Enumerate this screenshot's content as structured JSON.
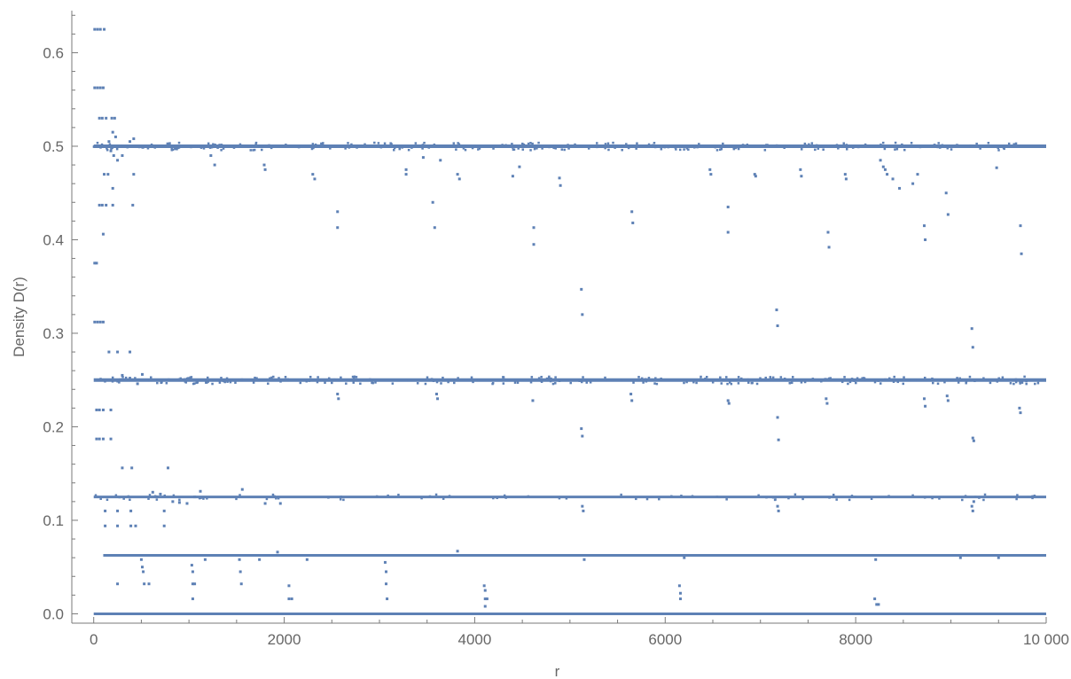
{
  "chart_data": {
    "type": "scatter",
    "title": "",
    "xlabel": "r",
    "ylabel": "Density D(r)",
    "xlim": [
      -230,
      10000
    ],
    "ylim": [
      -0.01,
      0.645
    ],
    "x_ticks": [
      {
        "value": 0,
        "label": "0"
      },
      {
        "value": 2000,
        "label": "2000"
      },
      {
        "value": 4000,
        "label": "4000"
      },
      {
        "value": 6000,
        "label": "6000"
      },
      {
        "value": 8000,
        "label": "8000"
      },
      {
        "value": 10000,
        "label": "10 000"
      }
    ],
    "y_ticks": [
      {
        "value": 0.0,
        "label": "0.0"
      },
      {
        "value": 0.1,
        "label": "0.1"
      },
      {
        "value": 0.2,
        "label": "0.2"
      },
      {
        "value": 0.3,
        "label": "0.3"
      },
      {
        "value": 0.4,
        "label": "0.4"
      },
      {
        "value": 0.5,
        "label": "0.5"
      },
      {
        "value": 0.6,
        "label": "0.6"
      }
    ],
    "grid": false,
    "legend": "none",
    "point_color": "#5e81b5",
    "bands": [
      {
        "y": 0.5,
        "x_from": 0,
        "x_to": 10000
      },
      {
        "y": 0.25,
        "x_from": 0,
        "x_to": 10000
      },
      {
        "y": 0.125,
        "x_from": 0,
        "x_to": 10000
      },
      {
        "y": 0.0625,
        "x_from": 100,
        "x_to": 10000
      },
      {
        "y": 0.0,
        "x_from": 0,
        "x_to": 10000
      }
    ],
    "points": [
      [
        10,
        0.625
      ],
      [
        40,
        0.625
      ],
      [
        70,
        0.625
      ],
      [
        110,
        0.625
      ],
      [
        10,
        0.5625
      ],
      [
        40,
        0.5625
      ],
      [
        70,
        0.5625
      ],
      [
        100,
        0.5625
      ],
      [
        60,
        0.53
      ],
      [
        90,
        0.53
      ],
      [
        130,
        0.53
      ],
      [
        190,
        0.53
      ],
      [
        220,
        0.53
      ],
      [
        200,
        0.515
      ],
      [
        230,
        0.51
      ],
      [
        160,
        0.505
      ],
      [
        180,
        0.495
      ],
      [
        210,
        0.49
      ],
      [
        250,
        0.485
      ],
      [
        300,
        0.49
      ],
      [
        380,
        0.505
      ],
      [
        420,
        0.508
      ],
      [
        110,
        0.47
      ],
      [
        150,
        0.47
      ],
      [
        420,
        0.47
      ],
      [
        200,
        0.455
      ],
      [
        60,
        0.437
      ],
      [
        90,
        0.437
      ],
      [
        130,
        0.437
      ],
      [
        200,
        0.437
      ],
      [
        410,
        0.437
      ],
      [
        100,
        0.406
      ],
      [
        10,
        0.375
      ],
      [
        30,
        0.375
      ],
      [
        10,
        0.312
      ],
      [
        40,
        0.312
      ],
      [
        70,
        0.312
      ],
      [
        100,
        0.312
      ],
      [
        160,
        0.28
      ],
      [
        250,
        0.28
      ],
      [
        380,
        0.28
      ],
      [
        300,
        0.255
      ],
      [
        380,
        0.252
      ],
      [
        460,
        0.246
      ],
      [
        510,
        0.256
      ],
      [
        560,
        0.25
      ],
      [
        30,
        0.218
      ],
      [
        60,
        0.218
      ],
      [
        100,
        0.218
      ],
      [
        180,
        0.218
      ],
      [
        30,
        0.187
      ],
      [
        60,
        0.187
      ],
      [
        100,
        0.187
      ],
      [
        180,
        0.187
      ],
      [
        300,
        0.156
      ],
      [
        400,
        0.156
      ],
      [
        780,
        0.156
      ],
      [
        620,
        0.13
      ],
      [
        700,
        0.128
      ],
      [
        830,
        0.12
      ],
      [
        900,
        0.119
      ],
      [
        980,
        0.118
      ],
      [
        1060,
        0.125
      ],
      [
        1120,
        0.131
      ],
      [
        1560,
        0.133
      ],
      [
        1800,
        0.118
      ],
      [
        1960,
        0.118
      ],
      [
        120,
        0.11
      ],
      [
        250,
        0.11
      ],
      [
        390,
        0.11
      ],
      [
        740,
        0.11
      ],
      [
        120,
        0.094
      ],
      [
        250,
        0.094
      ],
      [
        390,
        0.094
      ],
      [
        440,
        0.094
      ],
      [
        740,
        0.094
      ],
      [
        500,
        0.058
      ],
      [
        510,
        0.05
      ],
      [
        520,
        0.045
      ],
      [
        530,
        0.032
      ],
      [
        580,
        0.032
      ],
      [
        1030,
        0.052
      ],
      [
        1040,
        0.045
      ],
      [
        1040,
        0.032
      ],
      [
        1060,
        0.032
      ],
      [
        1040,
        0.016
      ],
      [
        1170,
        0.058
      ],
      [
        1530,
        0.058
      ],
      [
        1540,
        0.045
      ],
      [
        1550,
        0.032
      ],
      [
        1740,
        0.058
      ],
      [
        1930,
        0.066
      ],
      [
        2050,
        0.03
      ],
      [
        2050,
        0.016
      ],
      [
        2080,
        0.016
      ],
      [
        2240,
        0.058
      ],
      [
        3060,
        0.055
      ],
      [
        3070,
        0.045
      ],
      [
        3070,
        0.032
      ],
      [
        3080,
        0.016
      ],
      [
        4100,
        0.03
      ],
      [
        4110,
        0.025
      ],
      [
        4110,
        0.016
      ],
      [
        4130,
        0.016
      ],
      [
        4110,
        0.008
      ],
      [
        6150,
        0.03
      ],
      [
        6160,
        0.022
      ],
      [
        6160,
        0.016
      ],
      [
        8200,
        0.016
      ],
      [
        8220,
        0.01
      ],
      [
        8240,
        0.01
      ],
      [
        250,
        0.032
      ],
      [
        1230,
        0.49
      ],
      [
        1270,
        0.48
      ],
      [
        1790,
        0.48
      ],
      [
        1800,
        0.475
      ],
      [
        2300,
        0.47
      ],
      [
        2320,
        0.465
      ],
      [
        2560,
        0.43
      ],
      [
        2560,
        0.413
      ],
      [
        3280,
        0.475
      ],
      [
        3280,
        0.47
      ],
      [
        3460,
        0.488
      ],
      [
        3560,
        0.44
      ],
      [
        3580,
        0.413
      ],
      [
        3640,
        0.485
      ],
      [
        3820,
        0.47
      ],
      [
        3840,
        0.465
      ],
      [
        4400,
        0.468
      ],
      [
        4470,
        0.478
      ],
      [
        4620,
        0.413
      ],
      [
        4620,
        0.395
      ],
      [
        4890,
        0.466
      ],
      [
        4900,
        0.458
      ],
      [
        5120,
        0.347
      ],
      [
        5130,
        0.32
      ],
      [
        5650,
        0.43
      ],
      [
        5660,
        0.418
      ],
      [
        6470,
        0.475
      ],
      [
        6480,
        0.47
      ],
      [
        6660,
        0.435
      ],
      [
        6660,
        0.408
      ],
      [
        6940,
        0.47
      ],
      [
        6950,
        0.468
      ],
      [
        7170,
        0.325
      ],
      [
        7180,
        0.308
      ],
      [
        7420,
        0.475
      ],
      [
        7430,
        0.468
      ],
      [
        7710,
        0.408
      ],
      [
        7720,
        0.392
      ],
      [
        7890,
        0.47
      ],
      [
        7900,
        0.465
      ],
      [
        8260,
        0.485
      ],
      [
        8290,
        0.478
      ],
      [
        8310,
        0.475
      ],
      [
        8330,
        0.47
      ],
      [
        8390,
        0.465
      ],
      [
        8460,
        0.455
      ],
      [
        8600,
        0.46
      ],
      [
        8650,
        0.47
      ],
      [
        8720,
        0.415
      ],
      [
        8730,
        0.4
      ],
      [
        8950,
        0.45
      ],
      [
        8970,
        0.427
      ],
      [
        9220,
        0.305
      ],
      [
        9230,
        0.285
      ],
      [
        9480,
        0.477
      ],
      [
        9730,
        0.415
      ],
      [
        9740,
        0.385
      ],
      [
        2560,
        0.235
      ],
      [
        2570,
        0.23
      ],
      [
        3600,
        0.235
      ],
      [
        3610,
        0.23
      ],
      [
        4610,
        0.228
      ],
      [
        5120,
        0.198
      ],
      [
        5130,
        0.19
      ],
      [
        5640,
        0.235
      ],
      [
        5650,
        0.228
      ],
      [
        6660,
        0.228
      ],
      [
        6670,
        0.225
      ],
      [
        7180,
        0.21
      ],
      [
        7190,
        0.186
      ],
      [
        7690,
        0.23
      ],
      [
        7700,
        0.225
      ],
      [
        8720,
        0.23
      ],
      [
        8730,
        0.222
      ],
      [
        8960,
        0.233
      ],
      [
        8970,
        0.228
      ],
      [
        9230,
        0.188
      ],
      [
        9240,
        0.185
      ],
      [
        9720,
        0.22
      ],
      [
        9730,
        0.215
      ],
      [
        5130,
        0.115
      ],
      [
        5140,
        0.11
      ],
      [
        7180,
        0.115
      ],
      [
        7190,
        0.11
      ],
      [
        9220,
        0.115
      ],
      [
        9230,
        0.11
      ],
      [
        9240,
        0.12
      ],
      [
        3820,
        0.067
      ],
      [
        5150,
        0.058
      ],
      [
        6200,
        0.06
      ],
      [
        8210,
        0.058
      ],
      [
        9100,
        0.06
      ],
      [
        9500,
        0.06
      ]
    ]
  }
}
